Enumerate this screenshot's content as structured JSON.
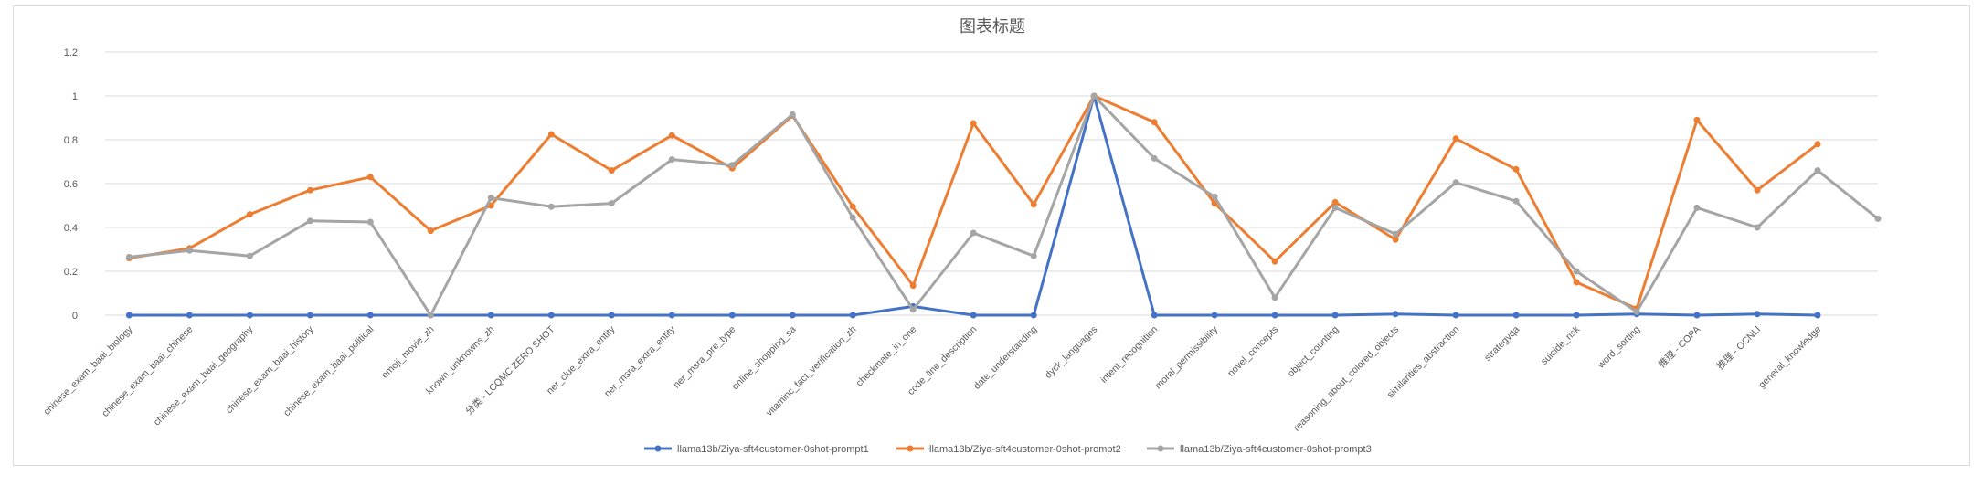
{
  "chart_data": {
    "type": "line",
    "title": "图表标题",
    "xlabel": "",
    "ylabel": "",
    "ylim": [
      0,
      1.2
    ],
    "yticks": [
      0,
      0.2,
      0.4,
      0.6,
      0.8,
      1,
      1.2
    ],
    "grid": true,
    "legend_position": "bottom",
    "categories": [
      "chinese_exam_baai_biology",
      "chinese_exam_baai_chinese",
      "chinese_exam_baai_geography",
      "chinese_exam_baai_history",
      "chinese_exam_baai_political",
      "emoji_movie_zh",
      "known_unknowns_zh",
      "分类 - LCQMC ZERO SHOT",
      "ner_clue_extra_entity",
      "ner_msra_extra_entity",
      "ner_msra_pre_type",
      "online_shopping_sa",
      "vitaminc_fact_verification_zh",
      "checkmate_in_one",
      "code_line_description",
      "date_understanding",
      "dyck_languages",
      "intent_recognition",
      "moral_permissibility",
      "novel_concepts",
      "object_counting",
      "reasoning_about_colored_objects",
      "similarities_abstraction",
      "strategyqa",
      "suicide_risk",
      "word_sorting",
      "推理 - COPA",
      "推理 - OCNLI",
      "general_knowledge",
      ""
    ],
    "series": [
      {
        "name": "llama13b/Ziya-sft4customer-0shot-prompt1",
        "color": "#4472c4",
        "values": [
          0,
          0,
          0,
          0,
          0,
          0,
          0,
          0,
          0,
          0,
          0,
          0,
          0,
          0.04,
          0,
          0,
          1,
          0,
          0,
          0,
          0,
          0.005,
          0,
          0,
          0,
          0.005,
          0,
          0.005,
          0,
          null
        ]
      },
      {
        "name": "llama13b/Ziya-sft4customer-0shot-prompt2",
        "color": "#ed7d31",
        "values": [
          0.26,
          0.305,
          0.46,
          0.57,
          0.63,
          0.385,
          0.5,
          0.825,
          0.66,
          0.82,
          0.67,
          0.91,
          0.495,
          0.135,
          0.875,
          0.505,
          1,
          0.88,
          0.51,
          0.245,
          0.515,
          0.345,
          0.805,
          0.665,
          0.15,
          0.03,
          0.89,
          0.57,
          0.78,
          null
        ]
      },
      {
        "name": "llama13b/Ziya-sft4customer-0shot-prompt3",
        "color": "#a5a5a5",
        "values": [
          0.265,
          0.295,
          0.27,
          0.43,
          0.425,
          0,
          0.535,
          0.495,
          0.51,
          0.71,
          0.685,
          0.915,
          0.445,
          0.025,
          0.375,
          0.27,
          1,
          0.715,
          0.54,
          0.08,
          0.49,
          0.37,
          0.605,
          0.52,
          0.2,
          0.015,
          0.49,
          0.4,
          0.66,
          0.44
        ]
      }
    ]
  }
}
